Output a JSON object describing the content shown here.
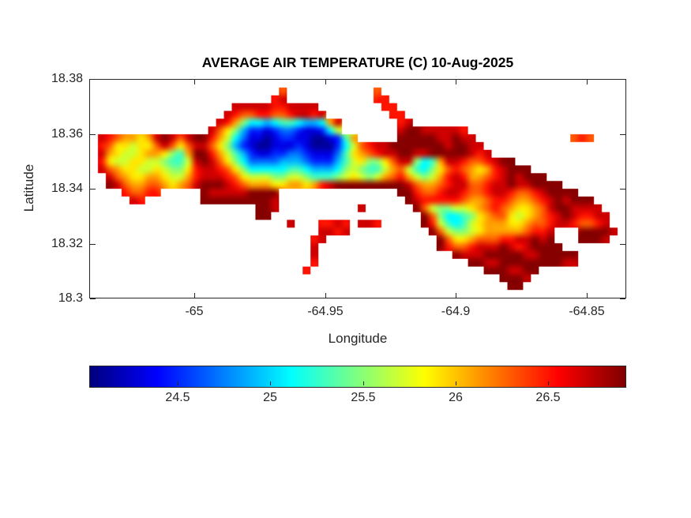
{
  "chart_data": {
    "type": "heatmap",
    "title": "AVERAGE AIR TEMPERATURE (C) 10-Aug-2025",
    "xlabel": "Longitude",
    "ylabel": "Latitude",
    "xlim": [
      -65.04,
      -64.835
    ],
    "ylim": [
      18.3,
      18.38
    ],
    "xticks": [
      -65,
      -64.95,
      -64.9,
      -64.85
    ],
    "xtick_labels": [
      "-65",
      "-64.95",
      "-64.9",
      "-64.85"
    ],
    "yticks": [
      18.38,
      18.36,
      18.34,
      18.32,
      18.3
    ],
    "ytick_labels": [
      "18.38",
      "18.36",
      "18.34",
      "18.32",
      "18.3"
    ],
    "colormap": "jet",
    "grid_on": false,
    "units": "degrees C",
    "colorbar": {
      "orientation": "horizontal",
      "range": [
        24.02,
        26.92
      ],
      "ticks": [
        24.5,
        25,
        25.5,
        26,
        26.5
      ],
      "tick_labels": [
        "24.5",
        "25",
        "25.5",
        "26",
        "26.5"
      ]
    },
    "grid": {
      "cols": 68,
      "rows": 28,
      "encoding": "each char is one cell; '.'=water/no-data; hex digit 1-f = temperature level, value_C = 23.9 + 0.2*level; rows ordered north to south, cols west to east; short rows padded with water",
      "rows_data": [
        "",
        "........................c...........c",
        ".......................de...........dd",
        "..................eeeeeddeeee........dd",
        ".................edccddccdeede........dd",
        "................edb86656776556be.......de",
        "...............eca85332344322369.......effeeeeed",
        ".edcbbabefeceffdb9642212332211237b.....fffffeefee............cdc",
        ".dcaa9aacecaceeca85321122232111369cdeefffffffeffee",
        ".eba99abba87bffdb9753223344322247abcdeeffeefffffede",
        ".da99aa998779efeca8644445554333579a88acee867beedccdeff",
        ".ecbaa99a988adeedca8666667765556898779bc9768acdcbabdefff",
        "..ecbaabba99bdeeedca9998899877789a989bcdb989bdedbbcdefefff",
        "..fecbbccbabcefffedcbbbaabbabdefffffffffecbbcdeeccdeefeeffff",
        "....dccdd.....feeeeeffff...............ffdccdeedccdeedccdeffff",
        ".....ed.......fffffffffe................fedddddcbbcddcbbcdefefff",
        ".....................ffe..........e......fc98899abcdcbaabceffeeee",
        ".....................ff...................fc86678abcca9abcdefeddee",
        ".........................e...dded.eed.....fd97679abbbaabccdeedccde",
        ".............................eede..........fc9889abbbbbcdde...ffffe",
        "............................de..............fcaabcccddeefef...fffe",
        "............................e...............fdccdeeefedeffff",
        "............................e.................feeefffffeefffff",
        "............................d...................ffeeffffffffee",
        "...........................d......................fffeeff",
        "....................................................fffe",
        ".....................................................ff",
        ""
      ]
    }
  }
}
